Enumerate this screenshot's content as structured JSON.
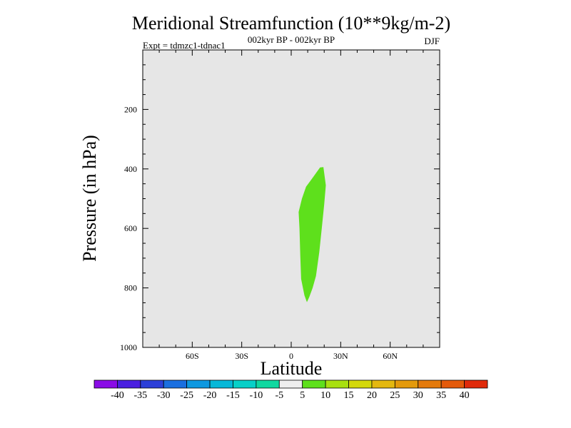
{
  "chart_data": {
    "type": "filled-contour",
    "title": "Meridional Streamfunction (10**9kg/m-2)",
    "subtitle_left": "Expt = tdmzc1-tdnac1",
    "subtitle_center": "002kyr BP - 002kyr BP",
    "subtitle_right": "DJF",
    "xlabel": "Latitude",
    "ylabel": "Pressure (in hPa)",
    "xlim": [
      -90,
      90
    ],
    "ylim": [
      0,
      1000
    ],
    "x_ticks": [
      {
        "value": -60,
        "label": "60S"
      },
      {
        "value": -30,
        "label": "30S"
      },
      {
        "value": 0,
        "label": "0"
      },
      {
        "value": 30,
        "label": "30N"
      },
      {
        "value": 60,
        "label": "60N"
      }
    ],
    "y_ticks": [
      {
        "value": 200,
        "label": "200"
      },
      {
        "value": 400,
        "label": "400"
      },
      {
        "value": 600,
        "label": "600"
      },
      {
        "value": 800,
        "label": "800"
      },
      {
        "value": 1000,
        "label": "1000"
      }
    ],
    "background_color": "#e6e6e6",
    "regions": [
      {
        "level_range": [
          5,
          10
        ],
        "color": "#5ee01c",
        "outline": [
          [
            17.5,
            395
          ],
          [
            19.5,
            394
          ],
          [
            21,
            455
          ],
          [
            20,
            520
          ],
          [
            18.5,
            600
          ],
          [
            17,
            680
          ],
          [
            15,
            760
          ],
          [
            13,
            800
          ],
          [
            11,
            830
          ],
          [
            9.5,
            848
          ],
          [
            8,
            825
          ],
          [
            6,
            770
          ],
          [
            5.5,
            690
          ],
          [
            5,
            600
          ],
          [
            4.5,
            545
          ],
          [
            6.5,
            500
          ],
          [
            9,
            460
          ],
          [
            13,
            430
          ]
        ]
      }
    ],
    "colorbar": {
      "labels": [
        "-40",
        "-35",
        "-30",
        "-25",
        "-20",
        "-15",
        "-10",
        "-5",
        "5",
        "10",
        "15",
        "20",
        "25",
        "30",
        "35",
        "40"
      ],
      "colors": [
        "#8a0ce6",
        "#4a1fe0",
        "#2c3fd8",
        "#1a6fe0",
        "#0e98e0",
        "#06b8d8",
        "#08d0c8",
        "#10d8a0",
        "#eeeeee",
        "#5ee01c",
        "#a8e010",
        "#d4d80a",
        "#e4b810",
        "#e49a0c",
        "#e47a0c",
        "#e45a0a",
        "#e02a0a"
      ]
    }
  }
}
